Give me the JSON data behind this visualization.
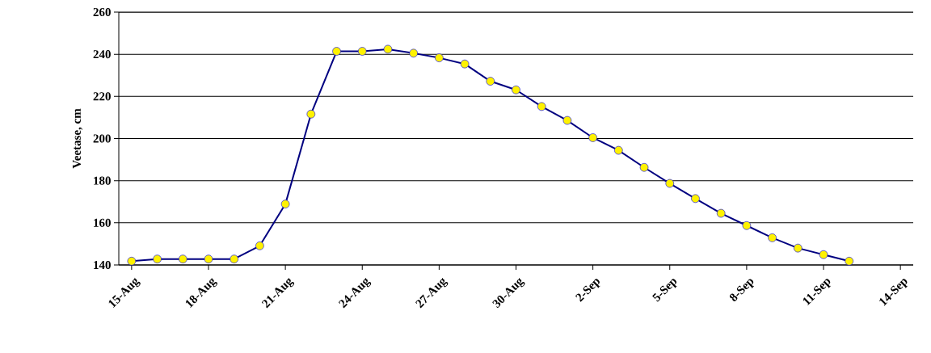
{
  "chart_data": {
    "type": "line",
    "ylabel": "Veetase, cm",
    "categories": [
      "15-Aug",
      null,
      null,
      "18-Aug",
      null,
      null,
      "21-Aug",
      null,
      null,
      "24-Aug",
      null,
      null,
      "27-Aug",
      null,
      null,
      "30-Aug",
      null,
      null,
      "2-Sep",
      null,
      null,
      "5-Sep",
      null,
      null,
      "8-Sep",
      null,
      null,
      "11-Sep",
      null,
      null,
      "14-Sep"
    ],
    "series": [
      {
        "color": "#000080",
        "values": [
          141.8,
          142.8,
          142.8,
          142.8,
          142.8,
          149.1,
          168.9,
          211.6,
          241.4,
          241.4,
          242.4,
          240.5,
          238.3,
          235.4,
          227.2,
          223.1,
          215.2,
          208.6,
          200.4,
          194.4,
          186.3,
          178.7,
          171.5,
          164.5,
          158.7,
          152.9,
          148,
          144.9,
          141.8,
          null,
          null
        ]
      }
    ],
    "ylim": [
      140,
      260
    ],
    "yticks": [
      140,
      160,
      180,
      200,
      220,
      240,
      260
    ],
    "grid": "y",
    "marker": "circle",
    "line_style": "solid"
  }
}
